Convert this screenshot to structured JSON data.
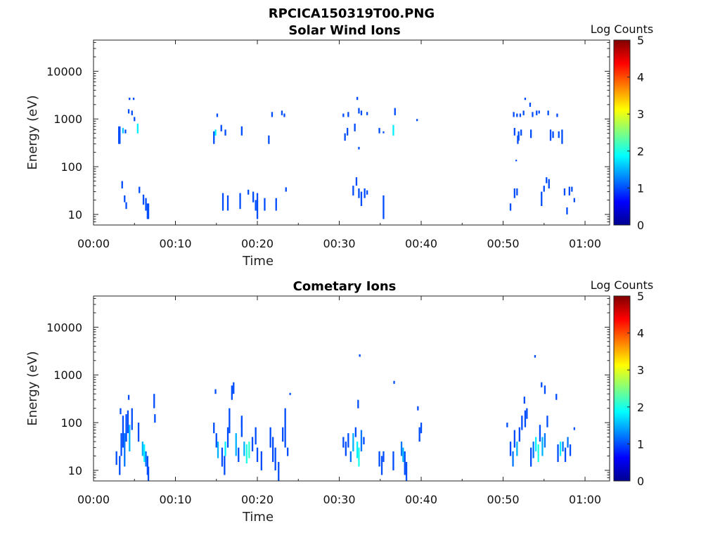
{
  "figure_title": "RPCICA150319T00.PNG",
  "colorbar": {
    "label": "Log Counts",
    "min": 0,
    "max": 5,
    "ticks": [
      "0",
      "1",
      "2",
      "3",
      "4",
      "5"
    ],
    "colormap": "jet"
  },
  "chart_data": [
    {
      "type": "heatmap",
      "title": "Solar Wind Ions",
      "xlabel": "Time",
      "ylabel": "Energy (eV)",
      "x_ticks": [
        "00:00",
        "00:10",
        "00:20",
        "00:30",
        "00:40",
        "00:50",
        "01:00"
      ],
      "y_ticks": [
        "10",
        "100",
        "1000",
        "10000"
      ],
      "y_scale": "log",
      "xlim_minutes": [
        0,
        63
      ],
      "ylim_eV": [
        6,
        45000
      ],
      "cells": [
        [
          3.0,
          3.3,
          300,
          700,
          1.0
        ],
        [
          3.5,
          3.7,
          500,
          650,
          1.6
        ],
        [
          4.3,
          4.5,
          2500,
          2800,
          1.0
        ],
        [
          4.8,
          5.0,
          2500,
          2800,
          1.0
        ],
        [
          4.2,
          4.4,
          1300,
          1600,
          1.0
        ],
        [
          4.6,
          4.8,
          1200,
          1500,
          1.0
        ],
        [
          4.9,
          5.1,
          900,
          1100,
          1.0
        ],
        [
          5.3,
          5.5,
          500,
          800,
          1.8
        ],
        [
          3.8,
          4.0,
          500,
          600,
          1.0
        ],
        [
          3.4,
          3.6,
          35,
          50,
          1.0
        ],
        [
          3.7,
          3.9,
          18,
          25,
          1.0
        ],
        [
          3.9,
          4.1,
          13,
          18,
          1.0
        ],
        [
          5.5,
          5.7,
          28,
          38,
          1.0
        ],
        [
          6.0,
          6.2,
          16,
          26,
          1.0
        ],
        [
          6.3,
          6.5,
          12,
          22,
          1.0
        ],
        [
          6.5,
          6.8,
          8,
          17,
          1.0
        ],
        [
          14.6,
          14.8,
          300,
          550,
          1.0
        ],
        [
          14.8,
          15.0,
          450,
          600,
          1.8
        ],
        [
          15.0,
          15.2,
          1100,
          1300,
          1.0
        ],
        [
          15.5,
          15.7,
          550,
          750,
          1.0
        ],
        [
          16.0,
          16.2,
          450,
          600,
          1.0
        ],
        [
          18.0,
          18.2,
          450,
          700,
          1.0
        ],
        [
          21.3,
          21.5,
          300,
          450,
          1.0
        ],
        [
          21.7,
          21.9,
          1100,
          1400,
          1.0
        ],
        [
          22.9,
          23.1,
          1200,
          1500,
          1.0
        ],
        [
          23.2,
          23.4,
          1100,
          1300,
          1.0
        ],
        [
          15.7,
          15.9,
          12,
          28,
          1.0
        ],
        [
          16.3,
          16.5,
          12,
          25,
          1.0
        ],
        [
          17.8,
          18.0,
          13,
          28,
          1.0
        ],
        [
          18.8,
          19.0,
          26,
          33,
          1.0
        ],
        [
          19.4,
          19.6,
          18,
          30,
          1.0
        ],
        [
          19.7,
          19.9,
          12,
          20,
          1.0
        ],
        [
          19.9,
          20.1,
          8,
          28,
          1.0
        ],
        [
          22.2,
          22.4,
          12,
          22,
          1.0
        ],
        [
          23.4,
          23.6,
          30,
          37,
          1.0
        ],
        [
          20.8,
          21.0,
          12,
          22,
          1.0
        ],
        [
          30.4,
          30.6,
          1100,
          1300,
          1.0
        ],
        [
          31.0,
          31.2,
          1100,
          1400,
          1.0
        ],
        [
          32.3,
          32.5,
          1300,
          1700,
          1.0
        ],
        [
          32.6,
          32.8,
          1200,
          1500,
          1.0
        ],
        [
          33.3,
          33.5,
          1200,
          1400,
          1.0
        ],
        [
          32.1,
          32.3,
          2500,
          2900,
          1.0
        ],
        [
          30.6,
          30.8,
          350,
          500,
          1.0
        ],
        [
          30.9,
          31.1,
          450,
          650,
          1.0
        ],
        [
          31.8,
          32.0,
          550,
          800,
          1.0
        ],
        [
          32.3,
          32.5,
          230,
          260,
          1.0
        ],
        [
          34.8,
          35.0,
          500,
          650,
          1.0
        ],
        [
          35.3,
          35.5,
          500,
          550,
          1.0
        ],
        [
          36.5,
          36.7,
          450,
          750,
          1.8
        ],
        [
          36.7,
          36.9,
          1200,
          1700,
          1.0
        ],
        [
          39.4,
          39.6,
          900,
          1000,
          1.0
        ],
        [
          31.6,
          31.8,
          25,
          40,
          1.0
        ],
        [
          32.0,
          32.2,
          40,
          60,
          1.0
        ],
        [
          32.3,
          32.5,
          22,
          35,
          1.0
        ],
        [
          32.6,
          32.8,
          15,
          30,
          1.0
        ],
        [
          33.0,
          33.2,
          22,
          35,
          1.0
        ],
        [
          33.3,
          33.5,
          26,
          32,
          1.0
        ],
        [
          35.3,
          35.5,
          8,
          25,
          1.0
        ],
        [
          51.2,
          51.4,
          1100,
          1400,
          1.0
        ],
        [
          51.6,
          51.8,
          1100,
          1300,
          1.0
        ],
        [
          52.0,
          52.2,
          1100,
          1300,
          1.0
        ],
        [
          52.4,
          52.6,
          1200,
          1500,
          1.0
        ],
        [
          52.6,
          52.8,
          2500,
          2800,
          1.0
        ],
        [
          53.2,
          53.4,
          1800,
          2200,
          1.0
        ],
        [
          53.5,
          53.7,
          1100,
          1400,
          1.0
        ],
        [
          54.0,
          54.2,
          1200,
          1500,
          1.0
        ],
        [
          54.3,
          54.5,
          1300,
          1500,
          1.0
        ],
        [
          55.4,
          55.6,
          1200,
          1500,
          1.0
        ],
        [
          56.5,
          56.7,
          1100,
          1300,
          1.0
        ],
        [
          51.3,
          51.5,
          450,
          650,
          1.0
        ],
        [
          51.8,
          52.0,
          350,
          550,
          1.0
        ],
        [
          52.1,
          52.3,
          450,
          600,
          1.0
        ],
        [
          53.3,
          53.5,
          400,
          600,
          1.0
        ],
        [
          55.7,
          55.9,
          350,
          600,
          1.0
        ],
        [
          56.0,
          56.2,
          400,
          550,
          1.0
        ],
        [
          56.7,
          56.9,
          400,
          550,
          1.0
        ],
        [
          57.1,
          57.3,
          300,
          600,
          1.0
        ],
        [
          51.7,
          51.9,
          300,
          450,
          1.0
        ],
        [
          51.5,
          51.7,
          130,
          140,
          1.0
        ],
        [
          50.8,
          51.0,
          12,
          17,
          1.0
        ],
        [
          51.3,
          51.5,
          22,
          35,
          1.0
        ],
        [
          51.6,
          51.8,
          25,
          35,
          1.0
        ],
        [
          54.6,
          54.8,
          15,
          30,
          1.0
        ],
        [
          54.9,
          55.1,
          30,
          40,
          1.0
        ],
        [
          55.2,
          55.4,
          45,
          60,
          1.0
        ],
        [
          55.5,
          55.7,
          35,
          55,
          1.0
        ],
        [
          57.4,
          57.6,
          25,
          35,
          1.0
        ],
        [
          57.7,
          57.9,
          10,
          14,
          1.0
        ],
        [
          58.0,
          58.2,
          25,
          38,
          1.0
        ],
        [
          58.3,
          58.5,
          30,
          38,
          1.0
        ],
        [
          58.6,
          58.8,
          18,
          22,
          1.0
        ]
      ]
    },
    {
      "type": "heatmap",
      "title": "Cometary Ions",
      "xlabel": "Time",
      "ylabel": "Energy (eV)",
      "x_ticks": [
        "00:00",
        "00:10",
        "00:20",
        "00:30",
        "00:40",
        "00:50",
        "01:00"
      ],
      "y_ticks": [
        "10",
        "100",
        "1000",
        "10000"
      ],
      "y_scale": "log",
      "xlim_minutes": [
        0,
        63
      ],
      "ylim_eV": [
        6,
        45000
      ],
      "cells": [
        [
          2.7,
          2.9,
          13,
          25,
          1.0
        ],
        [
          3.1,
          3.3,
          8,
          20,
          1.0
        ],
        [
          3.3,
          3.5,
          20,
          60,
          1.0
        ],
        [
          3.5,
          3.7,
          30,
          140,
          1.0
        ],
        [
          3.7,
          3.9,
          12,
          60,
          1.2
        ],
        [
          3.9,
          4.1,
          40,
          150,
          1.0
        ],
        [
          4.1,
          4.3,
          60,
          180,
          1.0
        ],
        [
          4.3,
          4.5,
          25,
          90,
          1.5
        ],
        [
          4.6,
          4.8,
          70,
          200,
          1.0
        ],
        [
          3.2,
          3.4,
          150,
          200,
          1.0
        ],
        [
          4.2,
          4.4,
          300,
          380,
          1.0
        ],
        [
          5.4,
          5.6,
          40,
          100,
          1.0
        ],
        [
          5.9,
          6.1,
          20,
          40,
          1.5
        ],
        [
          6.1,
          6.3,
          15,
          35,
          1.8
        ],
        [
          6.3,
          6.5,
          12,
          25,
          1.2
        ],
        [
          6.5,
          6.7,
          8,
          20,
          1.0
        ],
        [
          6.6,
          6.8,
          6,
          12,
          1.0
        ],
        [
          7.3,
          7.5,
          200,
          400,
          1.0
        ],
        [
          7.4,
          7.6,
          100,
          150,
          1.0
        ],
        [
          14.6,
          14.8,
          60,
          100,
          1.0
        ],
        [
          14.9,
          15.1,
          30,
          60,
          1.0
        ],
        [
          15.1,
          15.3,
          18,
          40,
          1.5
        ],
        [
          15.6,
          15.8,
          12,
          30,
          1.0
        ],
        [
          15.9,
          16.1,
          8,
          20,
          1.0
        ],
        [
          16.0,
          16.2,
          20,
          40,
          1.8
        ],
        [
          16.3,
          16.5,
          30,
          80,
          1.0
        ],
        [
          16.5,
          16.7,
          60,
          200,
          1.0
        ],
        [
          16.8,
          17.0,
          300,
          600,
          1.0
        ],
        [
          17.3,
          17.5,
          20,
          60,
          1.5
        ],
        [
          17.6,
          17.8,
          15,
          30,
          1.0
        ],
        [
          18.0,
          18.2,
          50,
          140,
          1.0
        ],
        [
          18.3,
          18.5,
          20,
          40,
          1.5
        ],
        [
          18.6,
          18.8,
          14,
          35,
          2.0
        ],
        [
          18.9,
          19.1,
          18,
          40,
          2.1
        ],
        [
          19.3,
          19.5,
          25,
          50,
          1.0
        ],
        [
          19.7,
          19.9,
          35,
          80,
          1.0
        ],
        [
          19.9,
          20.1,
          15,
          30,
          1.0
        ],
        [
          20.4,
          20.6,
          10,
          25,
          1.0
        ],
        [
          21.5,
          21.7,
          30,
          80,
          1.0
        ],
        [
          21.8,
          22.0,
          15,
          50,
          1.0
        ],
        [
          22.1,
          22.3,
          10,
          30,
          1.0
        ],
        [
          22.5,
          22.7,
          6,
          15,
          1.0
        ],
        [
          23.0,
          23.2,
          40,
          80,
          1.0
        ],
        [
          23.3,
          23.5,
          30,
          200,
          1.0
        ],
        [
          23.6,
          23.8,
          20,
          30,
          1.0
        ],
        [
          14.8,
          15.0,
          400,
          500,
          1.0
        ],
        [
          17.0,
          17.2,
          400,
          700,
          1.0
        ],
        [
          18.0,
          18.2,
          80,
          120,
          1.0
        ],
        [
          23.9,
          24.1,
          380,
          420,
          1.0
        ],
        [
          30.4,
          30.6,
          30,
          50,
          1.0
        ],
        [
          30.7,
          30.9,
          20,
          40,
          1.0
        ],
        [
          31.0,
          31.2,
          30,
          60,
          1.0
        ],
        [
          31.3,
          31.5,
          15,
          25,
          1.2
        ],
        [
          31.6,
          31.8,
          25,
          60,
          1.5
        ],
        [
          31.9,
          32.1,
          50,
          80,
          1.0
        ],
        [
          32.1,
          32.3,
          18,
          40,
          1.8
        ],
        [
          32.3,
          32.5,
          12,
          30,
          2.0
        ],
        [
          32.6,
          32.8,
          25,
          70,
          1.2
        ],
        [
          32.9,
          33.1,
          35,
          50,
          1.0
        ],
        [
          32.2,
          32.4,
          200,
          300,
          1.0
        ],
        [
          32.4,
          32.6,
          2400,
          2700,
          1.0
        ],
        [
          34.8,
          35.0,
          12,
          25,
          1.0
        ],
        [
          35.1,
          35.3,
          8,
          20,
          1.0
        ],
        [
          35.3,
          35.5,
          15,
          25,
          1.0
        ],
        [
          36.5,
          36.7,
          10,
          25,
          1.0
        ],
        [
          36.6,
          36.8,
          650,
          750,
          1.0
        ],
        [
          37.5,
          37.7,
          20,
          40,
          1.2
        ],
        [
          37.7,
          37.9,
          15,
          30,
          1.5
        ],
        [
          37.9,
          38.1,
          8,
          25,
          1.0
        ],
        [
          38.1,
          38.3,
          6,
          15,
          1.0
        ],
        [
          39.7,
          39.9,
          40,
          80,
          1.0
        ],
        [
          39.9,
          40.1,
          60,
          100,
          1.0
        ],
        [
          39.5,
          39.7,
          180,
          220,
          1.0
        ],
        [
          50.4,
          50.6,
          80,
          100,
          1.0
        ],
        [
          50.8,
          51.0,
          20,
          40,
          1.0
        ],
        [
          51.1,
          51.3,
          12,
          25,
          1.2
        ],
        [
          51.3,
          51.5,
          30,
          70,
          1.0
        ],
        [
          51.6,
          51.8,
          20,
          40,
          1.5
        ],
        [
          51.9,
          52.1,
          40,
          80,
          1.0
        ],
        [
          52.2,
          52.4,
          70,
          140,
          1.0
        ],
        [
          52.6,
          52.8,
          80,
          180,
          1.0
        ],
        [
          52.8,
          53.0,
          120,
          200,
          1.0
        ],
        [
          53.3,
          53.5,
          12,
          30,
          1.0
        ],
        [
          53.6,
          53.8,
          18,
          40,
          1.2
        ],
        [
          53.9,
          54.1,
          25,
          50,
          1.8
        ],
        [
          54.2,
          54.4,
          15,
          35,
          2.0
        ],
        [
          54.4,
          54.6,
          40,
          90,
          1.0
        ],
        [
          54.7,
          54.9,
          20,
          50,
          1.5
        ],
        [
          55.0,
          55.2,
          30,
          60,
          1.2
        ],
        [
          55.3,
          55.5,
          80,
          140,
          1.0
        ],
        [
          56.6,
          56.8,
          15,
          35,
          1.0
        ],
        [
          56.9,
          57.1,
          20,
          40,
          1.8
        ],
        [
          57.2,
          57.4,
          25,
          40,
          1.2
        ],
        [
          57.5,
          57.7,
          15,
          30,
          1.0
        ],
        [
          57.8,
          58.0,
          30,
          50,
          1.2
        ],
        [
          58.1,
          58.3,
          20,
          35,
          1.0
        ],
        [
          58.6,
          58.8,
          70,
          80,
          1.0
        ],
        [
          53.8,
          54.0,
          2300,
          2600,
          1.0
        ],
        [
          54.6,
          54.8,
          550,
          700,
          1.0
        ],
        [
          55.0,
          55.2,
          400,
          600,
          1.0
        ],
        [
          56.4,
          56.6,
          300,
          400,
          1.0
        ],
        [
          52.5,
          52.7,
          250,
          350,
          1.0
        ]
      ]
    }
  ]
}
